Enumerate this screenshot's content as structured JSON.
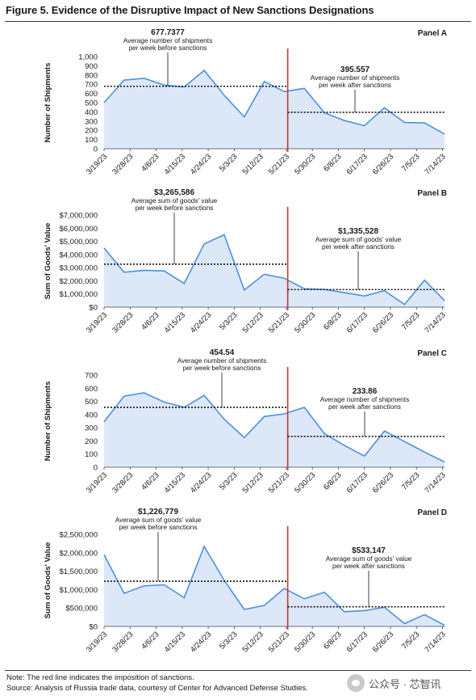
{
  "figure_title": "Figure 5. Evidence of the Disruptive Impact of New Sanctions Designations",
  "note": "Note: The red line indicates the imposition of sanctions.",
  "source": "Source: Analysis of Russia trade data, courtesy of Center for Advanced Defense Studies.",
  "watermark": "公众号 · 芯智讯",
  "colors": {
    "line": "#4a90e2",
    "fill": "#dce8f8",
    "sanction_line": "#c0392b",
    "text": "#1a1a1a"
  },
  "sanction_date": "5/21/23",
  "chart_data": [
    {
      "panel": "Panel A",
      "type": "area",
      "ylabel": "Number of Shipments",
      "ylim": [
        0,
        1000
      ],
      "yticks": [
        "0",
        "100",
        "200",
        "300",
        "400",
        "500",
        "600",
        "700",
        "800",
        "900",
        "1,000"
      ],
      "x_tick_labels": [
        "3/19/23",
        "3/28/23",
        "4/6/23",
        "4/15/23",
        "4/24/23",
        "5/3/23",
        "5/12/23",
        "5/21/23",
        "5/30/23",
        "6/8/23",
        "6/17/23",
        "6/26/23",
        "7/5/23",
        "7/14/23"
      ],
      "x": [
        "3/19/23",
        "3/26/23",
        "4/2/23",
        "4/9/23",
        "4/16/23",
        "4/23/23",
        "4/30/23",
        "5/7/23",
        "5/14/23",
        "5/21/23",
        "5/28/23",
        "6/4/23",
        "6/11/23",
        "6/18/23",
        "6/25/23",
        "7/2/23",
        "7/9/23",
        "7/16/23"
      ],
      "values": [
        500,
        745,
        765,
        690,
        670,
        850,
        580,
        345,
        730,
        620,
        655,
        390,
        305,
        250,
        445,
        285,
        280,
        160
      ],
      "before_avg": {
        "value": 677.7377,
        "label": "677.7377",
        "line1": "Average number of shipments",
        "line2": "per week before sanctions"
      },
      "after_avg": {
        "value": 395.557,
        "label": "395.557",
        "line1": "Average number of shipments",
        "line2": "per week after sanctions"
      }
    },
    {
      "panel": "Panel B",
      "type": "area",
      "ylabel": "Sum of Goods' Value",
      "ylim": [
        0,
        7000000
      ],
      "yticks": [
        "$0",
        "$1,000,000",
        "$2,000,000",
        "$3,000,000",
        "$4,000,000",
        "$5,000,000",
        "$6,000,000",
        "$7,000,000"
      ],
      "x_tick_labels": [
        "3/19/23",
        "3/28/23",
        "4/6/23",
        "4/15/23",
        "4/24/23",
        "5/3/23",
        "5/12/23",
        "5/21/23",
        "5/30/23",
        "6/8/23",
        "6/17/23",
        "6/26/23",
        "7/5/23",
        "7/14/23"
      ],
      "x": [
        "3/19/23",
        "3/26/23",
        "4/2/23",
        "4/9/23",
        "4/16/23",
        "4/23/23",
        "4/30/23",
        "5/7/23",
        "5/14/23",
        "5/21/23",
        "5/28/23",
        "6/4/23",
        "6/11/23",
        "6/18/23",
        "6/25/23",
        "7/2/23",
        "7/9/23",
        "7/16/23"
      ],
      "values": [
        4500000,
        2650000,
        2800000,
        2750000,
        1800000,
        4800000,
        5500000,
        1300000,
        2500000,
        2200000,
        1400000,
        1350000,
        1100000,
        850000,
        1250000,
        200000,
        2050000,
        500000
      ],
      "before_avg": {
        "value": 3265586,
        "label": "$3,265,586",
        "line1": "Average sum of goods' value",
        "line2": "per week before sanctions"
      },
      "after_avg": {
        "value": 1335528,
        "label": "$1,335,528",
        "line1": "Average sum of goods' value",
        "line2": "per week after sanctions"
      }
    },
    {
      "panel": "Panel C",
      "type": "area",
      "ylabel": "Number of Shipments",
      "ylim": [
        0,
        700
      ],
      "yticks": [
        "0",
        "100",
        "200",
        "300",
        "400",
        "500",
        "600",
        "700"
      ],
      "x_tick_labels": [
        "3/19/23",
        "3/28/23",
        "4/6/23",
        "4/15/23",
        "4/24/23",
        "5/3/23",
        "5/12/23",
        "5/21/23",
        "5/30/23",
        "6/8/23",
        "6/17/23",
        "6/26/23",
        "7/5/23",
        "7/14/23"
      ],
      "x": [
        "3/19/23",
        "3/26/23",
        "4/2/23",
        "4/9/23",
        "4/16/23",
        "4/23/23",
        "4/30/23",
        "5/7/23",
        "5/14/23",
        "5/21/23",
        "5/28/23",
        "6/4/23",
        "6/11/23",
        "6/18/23",
        "6/25/23",
        "7/2/23",
        "7/9/23",
        "7/16/23"
      ],
      "values": [
        345,
        540,
        565,
        495,
        455,
        545,
        365,
        225,
        385,
        405,
        455,
        255,
        165,
        85,
        275,
        195,
        115,
        40
      ],
      "before_avg": {
        "value": 454.54,
        "label": "454.54",
        "line1": "Average number of shipments",
        "line2": "per week before sanctions"
      },
      "after_avg": {
        "value": 233.86,
        "label": "233.86",
        "line1": "Average number of shipments",
        "line2": "per week after sanctions"
      }
    },
    {
      "panel": "Panel D",
      "type": "area",
      "ylabel": "Sum of Goods' Value",
      "ylim": [
        0,
        2500000
      ],
      "yticks": [
        "$0",
        "$500,000",
        "$1,000,000",
        "$1,500,000",
        "$2,000,000",
        "$2,500,000"
      ],
      "x_tick_labels": [
        "3/19/23",
        "3/28/23",
        "4/6/23",
        "4/15/23",
        "4/24/23",
        "5/3/23",
        "5/12/23",
        "5/21/23",
        "5/30/23",
        "6/8/23",
        "6/17/23",
        "6/26/23",
        "7/5/23",
        "7/14/23"
      ],
      "x": [
        "3/19/23",
        "3/26/23",
        "4/2/23",
        "4/9/23",
        "4/16/23",
        "4/23/23",
        "4/30/23",
        "5/7/23",
        "5/14/23",
        "5/21/23",
        "5/28/23",
        "6/4/23",
        "6/11/23",
        "6/18/23",
        "6/25/23",
        "7/2/23",
        "7/9/23",
        "7/16/23"
      ],
      "values": [
        1950000,
        900000,
        1100000,
        1130000,
        780000,
        2170000,
        1250000,
        460000,
        570000,
        1030000,
        750000,
        930000,
        400000,
        430000,
        520000,
        80000,
        320000,
        30000
      ],
      "before_avg": {
        "value": 1226779,
        "label": "$1,226,779",
        "line1": "Average sum of goods' value",
        "line2": "per week before sanctions"
      },
      "after_avg": {
        "value": 533147,
        "label": "$533,147",
        "line1": "Average sum of goods' value",
        "line2": "per week after sanctions"
      }
    }
  ]
}
